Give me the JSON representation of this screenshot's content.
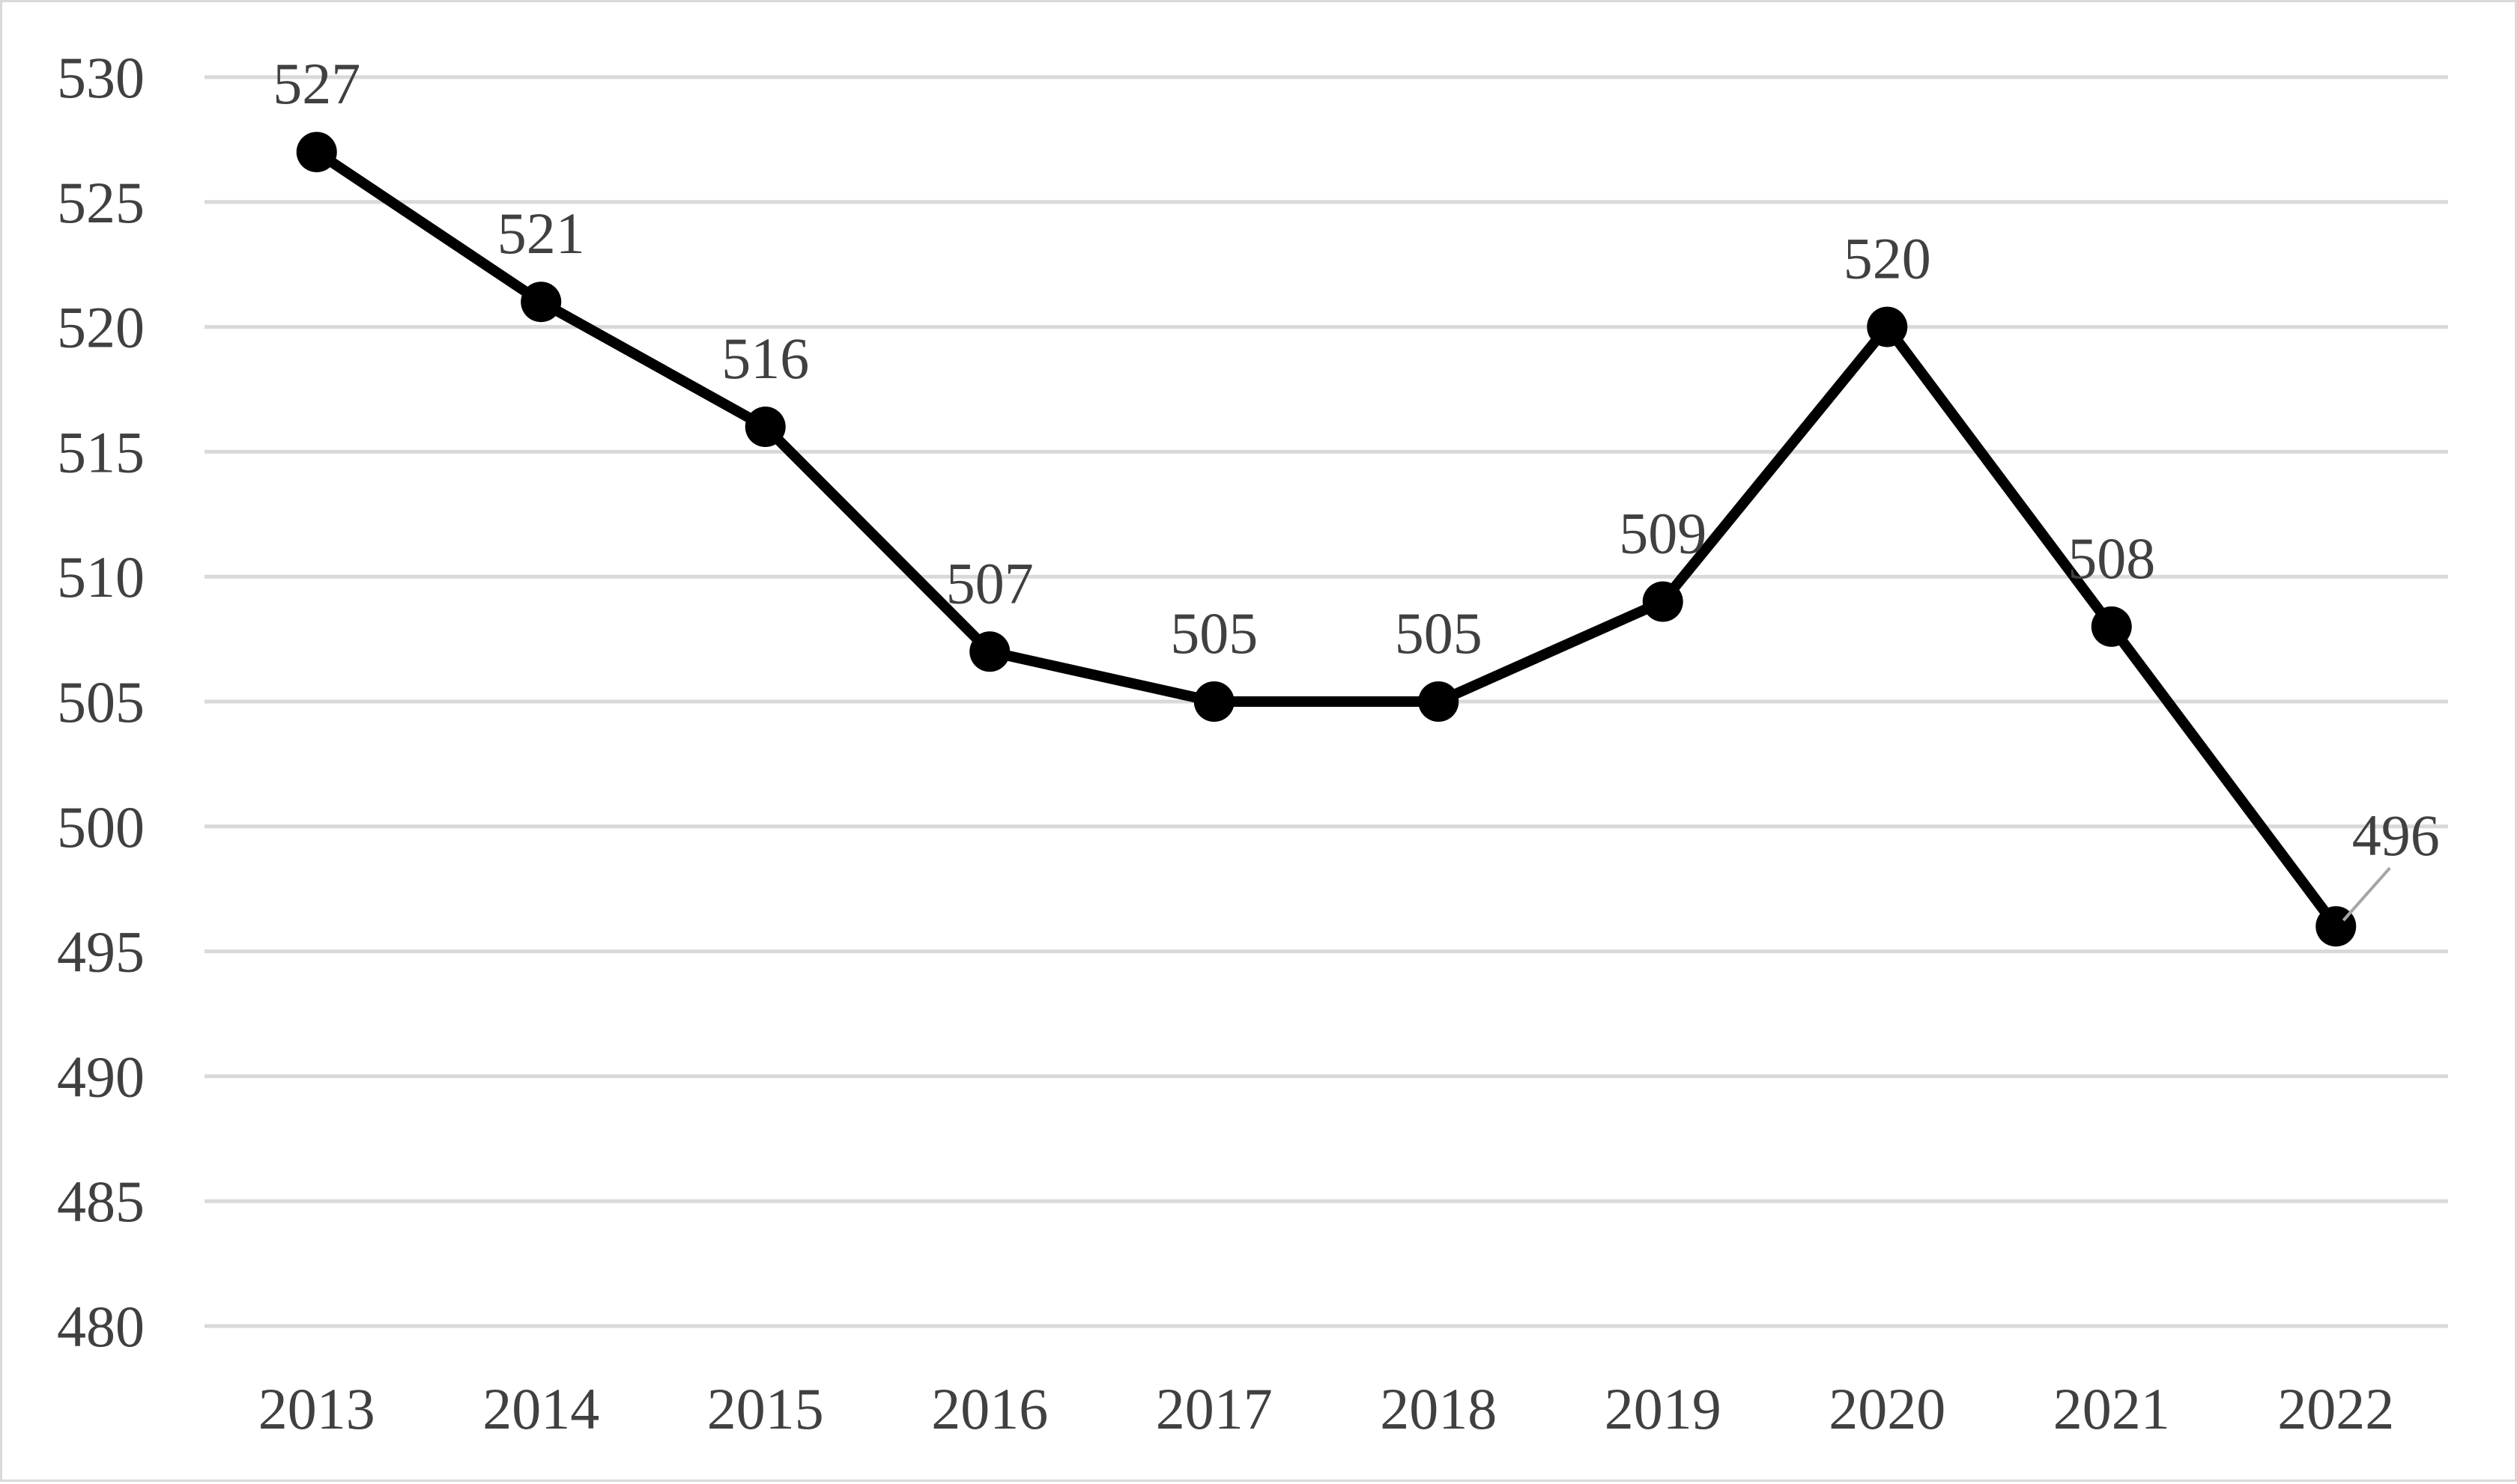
{
  "chart_data": {
    "type": "line",
    "title": "",
    "xlabel": "",
    "ylabel": "",
    "categories": [
      "2013",
      "2014",
      "2015",
      "2016",
      "2017",
      "2018",
      "2019",
      "2020",
      "2021",
      "2022"
    ],
    "series": [
      {
        "values": [
          527,
          521,
          516,
          507,
          505,
          505,
          509,
          520,
          508,
          496
        ]
      }
    ],
    "data_labels": [
      "527",
      "521",
      "516",
      "507",
      "505",
      "505",
      "509",
      "520",
      "508",
      "496"
    ],
    "ylim": [
      480,
      530
    ],
    "y_ticks": [
      480,
      485,
      490,
      495,
      500,
      505,
      510,
      515,
      520,
      525,
      530
    ],
    "y_tick_labels": [
      "480",
      "485",
      "490",
      "495",
      "500",
      "505",
      "510",
      "515",
      "520",
      "525",
      "530"
    ],
    "grid": true,
    "legend": "none",
    "line_color": "#000000",
    "grid_color": "#d9d9d9",
    "text_color": "#404040"
  }
}
